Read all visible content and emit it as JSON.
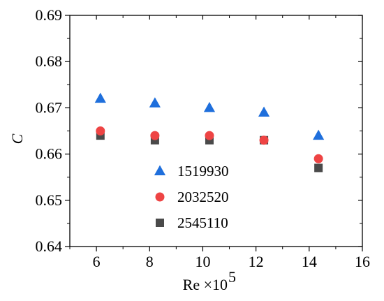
{
  "chart_data": {
    "type": "scatter",
    "xlabel": "Re ×10",
    "xlabel_exponent": "5",
    "ylabel": "C",
    "xlim": [
      5,
      16
    ],
    "ylim": [
      0.64,
      0.69
    ],
    "x_ticks": [
      6,
      8,
      10,
      12,
      14,
      16
    ],
    "x_tick_labels": [
      "6",
      "8",
      "10",
      "12",
      "14",
      "16"
    ],
    "y_ticks": [
      0.64,
      0.65,
      0.66,
      0.67,
      0.68,
      0.69
    ],
    "y_tick_labels": [
      "0.64",
      "0.65",
      "0.66",
      "0.67",
      "0.68",
      "0.69"
    ],
    "grid": false,
    "legend_position": "lower-center",
    "series": [
      {
        "name": "1519930",
        "marker": "triangle",
        "color": "#1f6fdc",
        "x": [
          6.15,
          8.2,
          10.25,
          12.3,
          14.35
        ],
        "y": [
          0.672,
          0.671,
          0.67,
          0.669,
          0.664
        ]
      },
      {
        "name": "2032520",
        "marker": "circle",
        "color": "#ee4444",
        "x": [
          6.15,
          8.2,
          10.25,
          12.3,
          14.35
        ],
        "y": [
          0.665,
          0.664,
          0.664,
          0.663,
          0.659
        ]
      },
      {
        "name": "2545110",
        "marker": "square",
        "color": "#4a4a4a",
        "x": [
          6.15,
          8.2,
          10.25,
          12.3,
          14.35
        ],
        "y": [
          0.664,
          0.663,
          0.663,
          0.663,
          0.657
        ]
      }
    ]
  }
}
